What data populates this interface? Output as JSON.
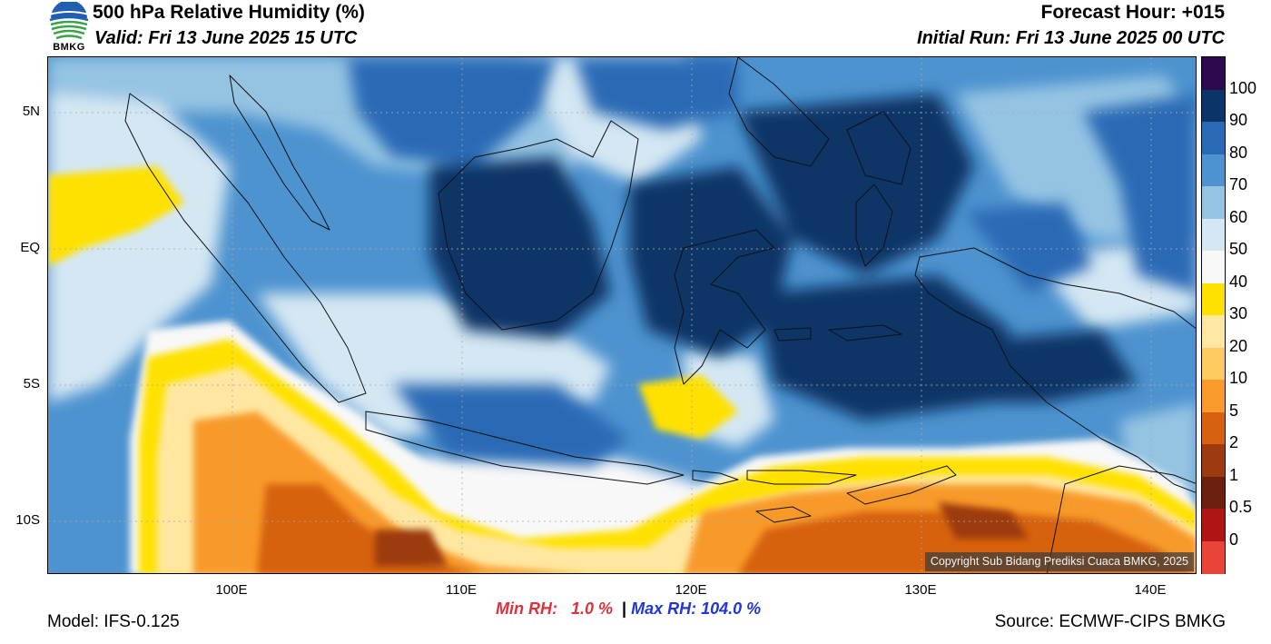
{
  "header": {
    "logo_text": "BMKG",
    "title": "500 hPa Relative Humidity (%)",
    "valid": "Valid: Fri 13 June 2025 15 UTC",
    "forecast_hour": "Forecast Hour: +015",
    "initial_run": "Initial Run: Fri 13 June 2025 00 UTC"
  },
  "map": {
    "copyright": "Copyright Sub Bidang Prediksi Cuaca BMKG, 2025",
    "lat_labels": [
      "5N",
      "EQ",
      "5S",
      "10S"
    ],
    "lon_labels": [
      "100E",
      "110E",
      "120E",
      "130E",
      "140E"
    ],
    "extent": {
      "lon_min": 92,
      "lon_max": 142,
      "lat_min": -12,
      "lat_max": 7
    }
  },
  "colorbar": {
    "labels": [
      "100",
      "90",
      "80",
      "70",
      "60",
      "50",
      "40",
      "30",
      "20",
      "10",
      "5",
      "2",
      "1",
      "0.5",
      "0"
    ],
    "colors": [
      "#2d0a4e",
      "#0b3566",
      "#2a6ab5",
      "#4d93cf",
      "#95c4e3",
      "#d4e7f3",
      "#f8f8f8",
      "#ffe100",
      "#ffe7a1",
      "#ffca60",
      "#f89a2c",
      "#d6620f",
      "#9c3a10",
      "#6b2010",
      "#b01515",
      "#e8443a"
    ]
  },
  "stats": {
    "min": "Min RH:   1.0 %",
    "separator": "|",
    "max": "Max RH: 104.0 %"
  },
  "footer": {
    "model": "Model: IFS-0.125",
    "source": "Source: ECMWF-CIPS BMKG"
  }
}
